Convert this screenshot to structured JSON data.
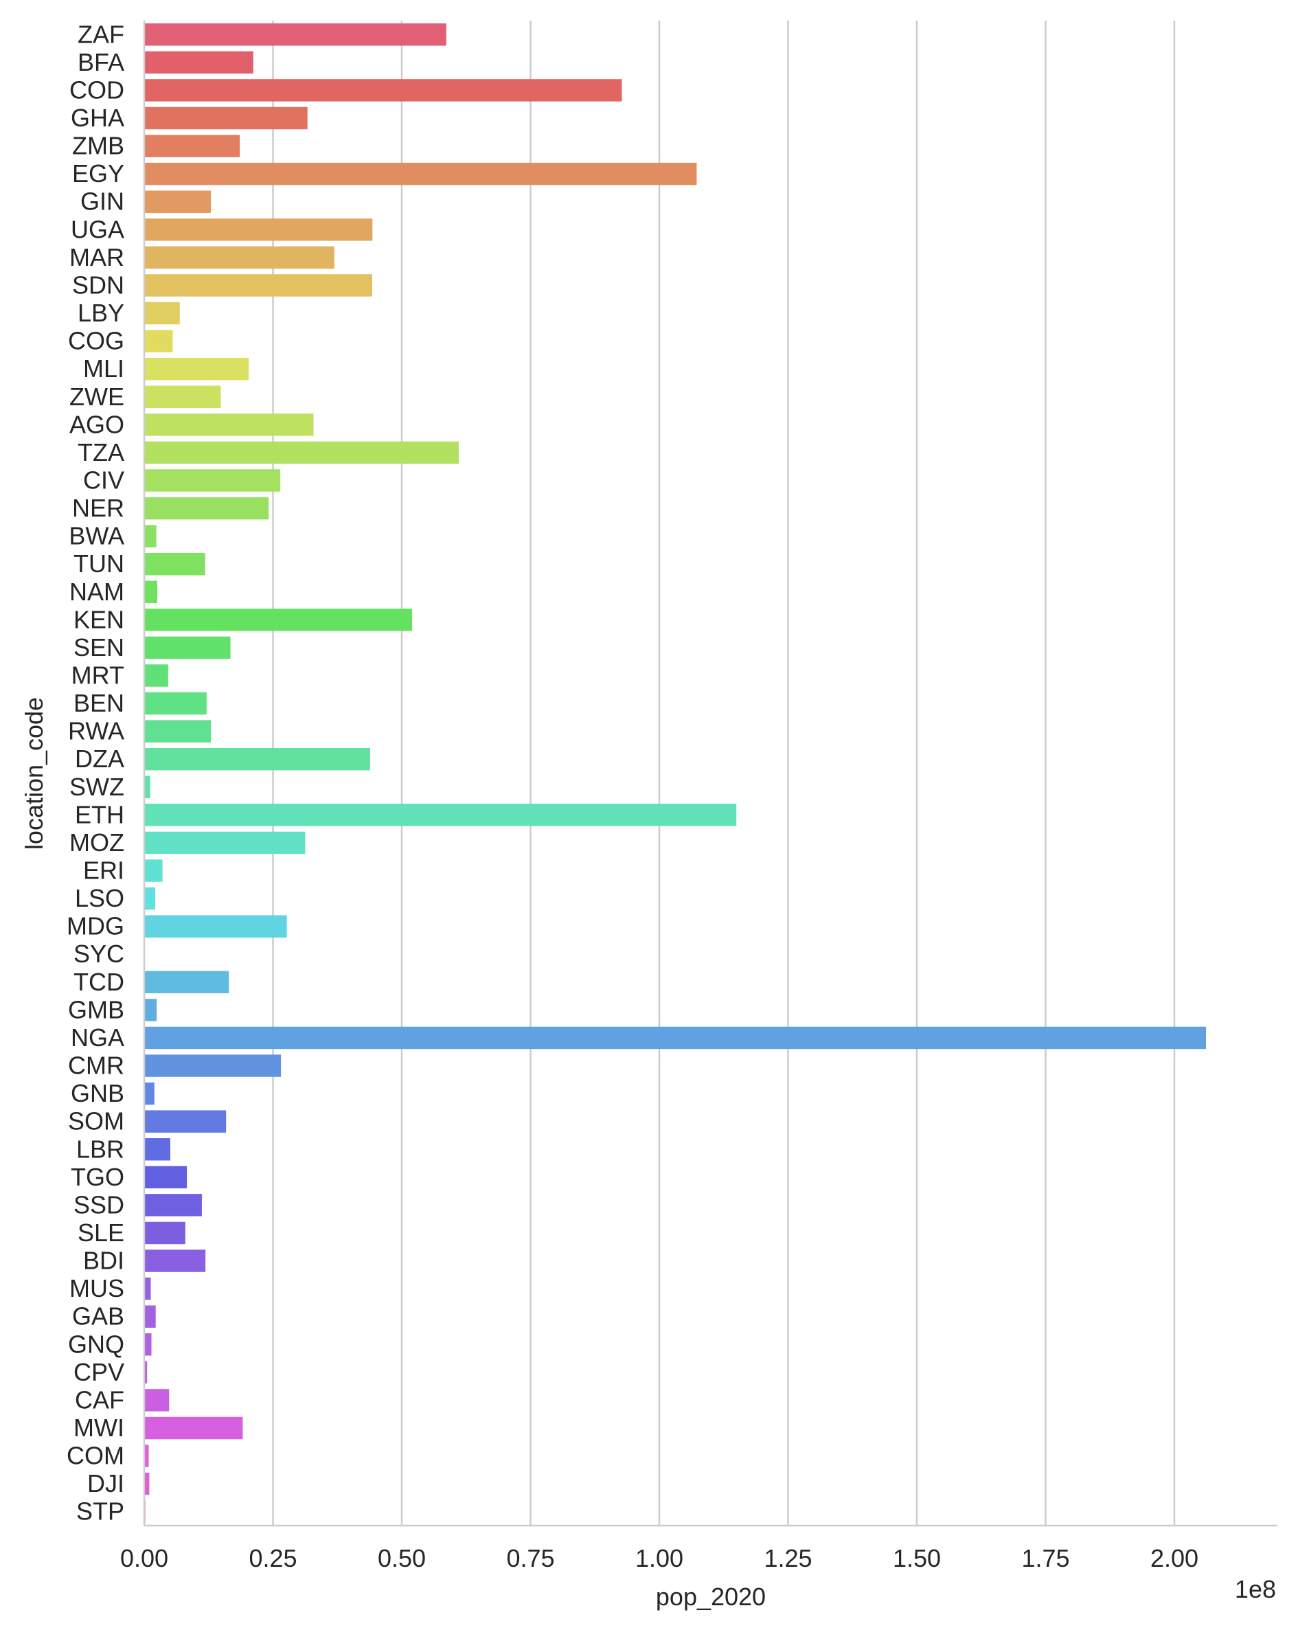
{
  "chart_data": {
    "type": "bar",
    "orientation": "horizontal",
    "xlabel": "pop_2020",
    "ylabel": "location_code",
    "x_offset_label": "1e8",
    "x_scale": 100000000,
    "xlim": [
      0,
      2.2
    ],
    "xticks": [
      0.0,
      0.25,
      0.5,
      0.75,
      1.0,
      1.25,
      1.5,
      1.75,
      2.0
    ],
    "xtick_labels": [
      "0.00",
      "0.25",
      "0.50",
      "0.75",
      "1.00",
      "1.25",
      "1.50",
      "1.75",
      "2.00"
    ],
    "grid": "vertical",
    "categories": [
      "ZAF",
      "BFA",
      "COD",
      "GHA",
      "ZMB",
      "EGY",
      "GIN",
      "UGA",
      "MAR",
      "SDN",
      "LBY",
      "COG",
      "MLI",
      "ZWE",
      "AGO",
      "TZA",
      "CIV",
      "NER",
      "BWA",
      "TUN",
      "NAM",
      "KEN",
      "SEN",
      "MRT",
      "BEN",
      "RWA",
      "DZA",
      "SWZ",
      "ETH",
      "MOZ",
      "ERI",
      "LSO",
      "MDG",
      "SYC",
      "TCD",
      "GMB",
      "NGA",
      "CMR",
      "GNB",
      "SOM",
      "LBR",
      "TGO",
      "SSD",
      "SLE",
      "BDI",
      "MUS",
      "GAB",
      "GNQ",
      "CPV",
      "CAF",
      "MWI",
      "COM",
      "DJI",
      "STP"
    ],
    "values": [
      0.5864,
      0.2117,
      0.9273,
      0.317,
      0.1855,
      1.0726,
      0.1294,
      0.4431,
      0.3691,
      0.4426,
      0.069,
      0.0554,
      0.2029,
      0.1486,
      0.3287,
      0.6106,
      0.2642,
      0.2417,
      0.0235,
      0.1182,
      0.0254,
      0.5201,
      0.1674,
      0.0465,
      0.1212,
      0.1295,
      0.4385,
      0.0116,
      1.1496,
      0.3126,
      0.0355,
      0.0214,
      0.2769,
      0.001,
      0.1643,
      0.0242,
      2.0614,
      0.2655,
      0.0197,
      0.1589,
      0.0506,
      0.0828,
      0.1119,
      0.0798,
      0.1189,
      0.0127,
      0.0223,
      0.014,
      0.0056,
      0.0483,
      0.1913,
      0.0087,
      0.0099,
      0.0022
    ]
  }
}
